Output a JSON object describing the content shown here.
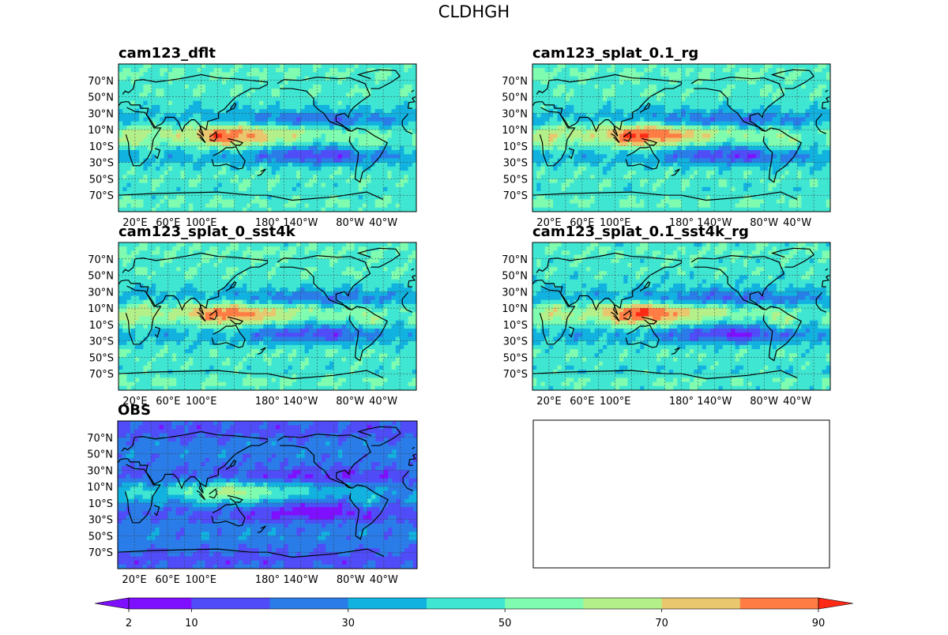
{
  "figure": {
    "title": "CLDHGH"
  },
  "chart_data": [
    {
      "type": "heatmap",
      "title": "cam123_dflt",
      "variable": "CLDHGH",
      "lat_ticks": [
        "70°N",
        "50°N",
        "30°N",
        "10°N",
        "10°S",
        "30°S",
        "50°S",
        "70°S"
      ],
      "lon_ticks": [
        "20°E",
        "60°E",
        "100°E",
        "180°",
        "140°W",
        "80°W",
        "40°W"
      ],
      "approx_ranges": {
        "tropical_max": 85,
        "subtropical_min": 20,
        "midlat": 45,
        "polar": 60
      }
    },
    {
      "type": "heatmap",
      "title": "cam123_splat_0.1_rg",
      "variable": "CLDHGH",
      "lat_ticks": [
        "70°N",
        "50°N",
        "30°N",
        "10°N",
        "10°S",
        "30°S",
        "50°S",
        "70°S"
      ],
      "lon_ticks": [
        "20°E",
        "60°E",
        "100°E",
        "180°",
        "140°W",
        "80°W",
        "40°W"
      ],
      "approx_ranges": {
        "tropical_max": 88,
        "subtropical_min": 20,
        "midlat": 45,
        "polar": 60
      }
    },
    {
      "type": "heatmap",
      "title": "cam123_splat_0_sst4k",
      "variable": "CLDHGH",
      "lat_ticks": [
        "70°N",
        "50°N",
        "30°N",
        "10°N",
        "10°S",
        "30°S",
        "50°S",
        "70°S"
      ],
      "lon_ticks": [
        "20°E",
        "60°E",
        "100°E",
        "180°",
        "140°W",
        "80°W",
        "40°W"
      ],
      "approx_ranges": {
        "tropical_max": 85,
        "subtropical_min": 20,
        "midlat": 45,
        "polar": 60
      }
    },
    {
      "type": "heatmap",
      "title": "cam123_splat_0.1_sst4k_rg",
      "variable": "CLDHGH",
      "lat_ticks": [
        "70°N",
        "50°N",
        "30°N",
        "10°N",
        "10°S",
        "30°S",
        "50°S",
        "70°S"
      ],
      "lon_ticks": [
        "20°E",
        "60°E",
        "100°E",
        "180°",
        "140°W",
        "80°W",
        "40°W"
      ],
      "approx_ranges": {
        "tropical_max": 88,
        "subtropical_min": 18,
        "midlat": 45,
        "polar": 60
      }
    },
    {
      "type": "heatmap",
      "title": "OBS",
      "variable": "CLDHGH",
      "lat_ticks": [
        "70°N",
        "50°N",
        "30°N",
        "10°N",
        "10°S",
        "30°S",
        "50°S",
        "70°S"
      ],
      "lon_ticks": [
        "20°E",
        "60°E",
        "100°E",
        "180°",
        "140°W",
        "80°W",
        "40°W"
      ],
      "approx_ranges": {
        "tropical_max": 65,
        "subtropical_min": 5,
        "midlat": 25,
        "polar": 15
      }
    }
  ],
  "colorbar": {
    "levels": [
      2,
      10,
      20,
      30,
      40,
      50,
      60,
      70,
      80,
      90
    ],
    "tick_labels": [
      "2",
      "10",
      "30",
      "50",
      "70",
      "90"
    ],
    "tick_values": [
      2,
      10,
      30,
      50,
      70,
      90
    ],
    "colors": [
      "#7f10ff",
      "#4f4cf8",
      "#2a7de8",
      "#12b2e0",
      "#3fe6d2",
      "#7ffcb0",
      "#b4f08a",
      "#e8c76e",
      "#ff7c44",
      "#ff2a16"
    ],
    "extend": "both"
  }
}
